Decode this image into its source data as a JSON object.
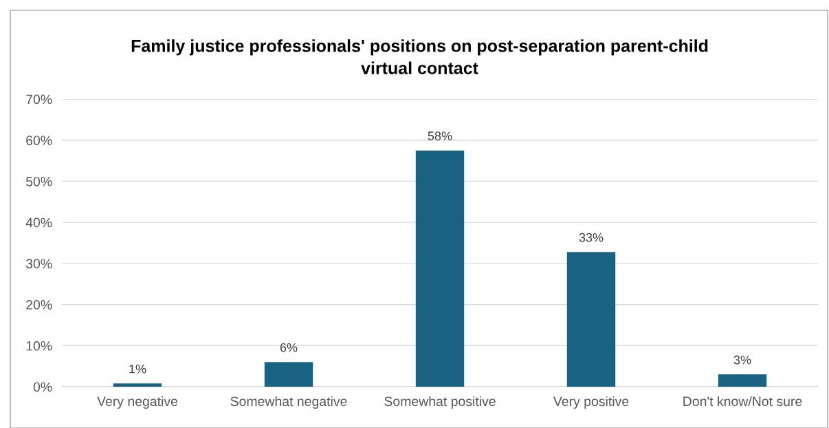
{
  "chart_data": {
    "type": "bar",
    "title": "Family justice professionals' positions on post-separation parent-child\nvirtual contact",
    "categories": [
      "Very negative",
      "Somewhat negative",
      "Somewhat positive",
      "Very positive",
      "Don't know/Not sure"
    ],
    "values": [
      0.8,
      6,
      57.5,
      32.8,
      3
    ],
    "value_labels": [
      "1%",
      "6%",
      "58%",
      "33%",
      "3%"
    ],
    "color": "#1a6282",
    "ylim": [
      0,
      70
    ],
    "yticks": [
      {
        "value": 0,
        "label": "0%"
      },
      {
        "value": 10,
        "label": "10%"
      },
      {
        "value": 20,
        "label": "20%"
      },
      {
        "value": 30,
        "label": "30%"
      },
      {
        "value": 40,
        "label": "40%"
      },
      {
        "value": 50,
        "label": "50%"
      },
      {
        "value": 60,
        "label": "60%"
      },
      {
        "value": 70,
        "label": "70%"
      }
    ],
    "grid": "y",
    "legend": false
  }
}
